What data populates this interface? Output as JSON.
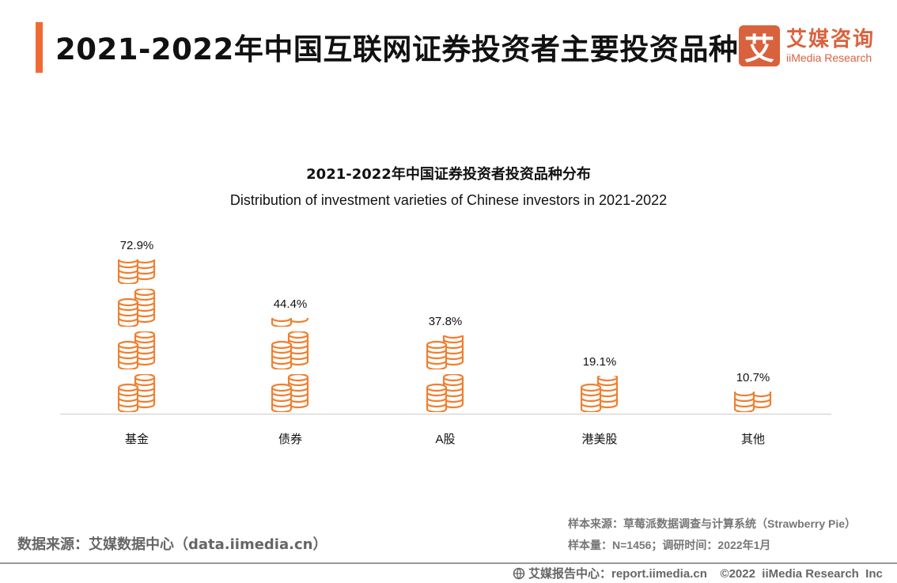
{
  "header": {
    "title": "2021-2022年中国互联网证券投资者主要投资品种",
    "logo_mark": "艾",
    "logo_cn": "艾媒咨询",
    "logo_en": "iiMedia Research"
  },
  "chart_data": {
    "type": "pictogram-bar",
    "title": "2021-2022年中国证券投资者投资品种分布",
    "subtitle": "Distribution of  investment varieties of Chinese investors in 2021-2022",
    "categories": [
      "基金",
      "债券",
      "A股",
      "港美股",
      "其他"
    ],
    "values": [
      72.9,
      44.4,
      37.8,
      19.1,
      10.7
    ],
    "labels": [
      "72.9%",
      "44.4%",
      "37.8%",
      "19.1%",
      "10.7%"
    ],
    "unit": "%",
    "icon": "coin-stack-icon",
    "color": "#f07f2f"
  },
  "footer": {
    "source": "数据来源：艾媒数据中心（data.iimedia.cn）",
    "sample_source": "样本来源：草莓派数据调查与计算系统（Strawberry Pie）",
    "sample_size": "样本量：N=1456；调研时间：2022年1月",
    "report": "艾媒报告中心：report.iimedia.cn    ©2022  iiMedia Research  Inc"
  }
}
